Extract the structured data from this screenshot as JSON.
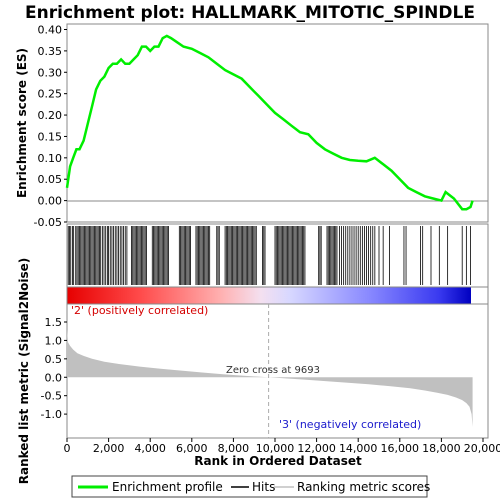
{
  "chart_data": {
    "type": "line",
    "title": "Enrichment plot: HALLMARK_MITOTIC_SPINDLE",
    "top_panel": {
      "ylabel": "Enrichment score (ES)",
      "ylim": [
        -0.05,
        0.4
      ],
      "yticks": [
        "0.40",
        "0.35",
        "0.30",
        "0.25",
        "0.20",
        "0.15",
        "0.10",
        "0.05",
        "0.00",
        "-0.05"
      ],
      "series": [
        {
          "name": "Enrichment profile",
          "color": "#00ee00",
          "x": [
            0,
            150,
            300,
            450,
            600,
            800,
            1000,
            1200,
            1400,
            1600,
            1800,
            2000,
            2200,
            2400,
            2600,
            2800,
            3000,
            3200,
            3400,
            3600,
            3800,
            4000,
            4200,
            4400,
            4600,
            4800,
            5000,
            5300,
            5600,
            6000,
            6400,
            6800,
            7200,
            7600,
            8000,
            8400,
            8800,
            9200,
            9600,
            10000,
            10400,
            10800,
            11200,
            11600,
            12000,
            12400,
            12800,
            13200,
            13600,
            14000,
            14400,
            14800,
            15200,
            15600,
            16000,
            16400,
            16800,
            17200,
            17600,
            18000,
            18200,
            18600,
            19000,
            19200,
            19400,
            19500
          ],
          "y": [
            0.03,
            0.08,
            0.1,
            0.12,
            0.12,
            0.14,
            0.18,
            0.22,
            0.26,
            0.28,
            0.29,
            0.31,
            0.32,
            0.32,
            0.33,
            0.32,
            0.32,
            0.33,
            0.34,
            0.36,
            0.36,
            0.35,
            0.36,
            0.36,
            0.38,
            0.385,
            0.38,
            0.37,
            0.36,
            0.355,
            0.345,
            0.335,
            0.32,
            0.305,
            0.295,
            0.285,
            0.265,
            0.245,
            0.225,
            0.205,
            0.19,
            0.175,
            0.16,
            0.155,
            0.135,
            0.12,
            0.11,
            0.1,
            0.095,
            0.093,
            0.092,
            0.1,
            0.085,
            0.07,
            0.05,
            0.03,
            0.02,
            0.01,
            0.005,
            0.0,
            0.02,
            0.005,
            -0.02,
            -0.02,
            -0.015,
            0.0
          ]
        }
      ]
    },
    "hits_panel": {
      "hits": [
        60,
        120,
        180,
        260,
        320,
        420,
        480,
        540,
        600,
        660,
        720,
        780,
        840,
        900,
        960,
        1020,
        1080,
        1140,
        1200,
        1260,
        1320,
        1380,
        1440,
        1500,
        1560,
        1620,
        1700,
        1780,
        1860,
        1940,
        2000,
        2080,
        2160,
        2240,
        2320,
        2400,
        2480,
        2560,
        2640,
        2720,
        2800,
        2880,
        3100,
        3160,
        3220,
        3280,
        3340,
        3400,
        3460,
        3520,
        3580,
        3640,
        3700,
        3760,
        3820,
        4100,
        4160,
        4220,
        4280,
        4340,
        4400,
        4460,
        4520,
        4580,
        4640,
        4700,
        4760,
        4820,
        4880,
        5400,
        5460,
        5520,
        5580,
        5640,
        5700,
        5760,
        5820,
        5880,
        5940,
        6200,
        6260,
        6320,
        6380,
        6440,
        6500,
        6560,
        6620,
        6680,
        6740,
        6800,
        6860,
        7200,
        7260,
        7320,
        7600,
        7660,
        7720,
        7780,
        7840,
        7900,
        7960,
        8020,
        8080,
        8140,
        8200,
        8260,
        8320,
        8380,
        8440,
        8500,
        8560,
        8620,
        8680,
        8740,
        8800,
        8860,
        8920,
        8980,
        9040,
        9100,
        9400,
        9460,
        9520,
        10000,
        10060,
        10120,
        10180,
        10240,
        10300,
        10360,
        10420,
        10480,
        10540,
        10600,
        10660,
        10720,
        10780,
        10840,
        10900,
        10960,
        11020,
        11080,
        11140,
        11200,
        11260,
        11320,
        11380,
        11440,
        12100,
        12160,
        12220,
        12500,
        12560,
        12620,
        12680,
        12740,
        12800,
        12860,
        12920,
        12980,
        13100,
        13200,
        13300,
        13400,
        13500,
        13600,
        13700,
        13800,
        13900,
        14000,
        14100,
        14200,
        14300,
        14400,
        14500,
        14600,
        14700,
        14800,
        15000,
        15200,
        15500,
        16200,
        16300,
        17000,
        17100,
        17500,
        17900,
        18300,
        19000,
        19200,
        19400
      ]
    },
    "bottom_panel": {
      "ylabel": "Ranked list metric (Signal2Noise)",
      "xlabel": "Rank in Ordered Dataset",
      "ylim": [
        -1.35,
        1.5
      ],
      "yticks": [
        "1.5",
        "1.0",
        "0.5",
        "0.0",
        "-0.5",
        "-1.0"
      ],
      "xticks": [
        "0",
        "2,000",
        "4,000",
        "6,000",
        "8,000",
        "10,000",
        "12,000",
        "14,000",
        "16,000",
        "18,000",
        "20,000"
      ],
      "xlim": [
        0,
        20000
      ],
      "series": [
        {
          "name": "Ranking metric scores",
          "color": "#c0c0c0",
          "x": [
            0,
            50,
            150,
            300,
            500,
            800,
            1200,
            1800,
            2500,
            3500,
            4500,
            5500,
            6500,
            7500,
            8500,
            9693,
            10500,
            11500,
            12500,
            13500,
            14500,
            15500,
            16500,
            17200,
            17800,
            18300,
            18700,
            19000,
            19200,
            19350,
            19450,
            19500
          ],
          "y": [
            1.3,
            0.95,
            0.85,
            0.75,
            0.65,
            0.58,
            0.5,
            0.42,
            0.36,
            0.29,
            0.23,
            0.18,
            0.13,
            0.08,
            0.04,
            0.0,
            -0.03,
            -0.07,
            -0.11,
            -0.15,
            -0.19,
            -0.24,
            -0.3,
            -0.36,
            -0.42,
            -0.48,
            -0.55,
            -0.62,
            -0.7,
            -0.8,
            -1.0,
            -1.35
          ]
        }
      ],
      "zero_cross_label": "Zero cross at 9693",
      "zero_cross": 9693,
      "pos_label": "'2' (positively correlated)",
      "neg_label": "'3' (negatively correlated)"
    },
    "legend": [
      "Enrichment profile",
      "Hits",
      "Ranking metric scores"
    ]
  },
  "colors": {
    "es_line": "#00ee00",
    "hit": "#000000",
    "metric_fill": "#c0c0c0",
    "pos": "#d40000",
    "neg": "#1a1acc"
  }
}
